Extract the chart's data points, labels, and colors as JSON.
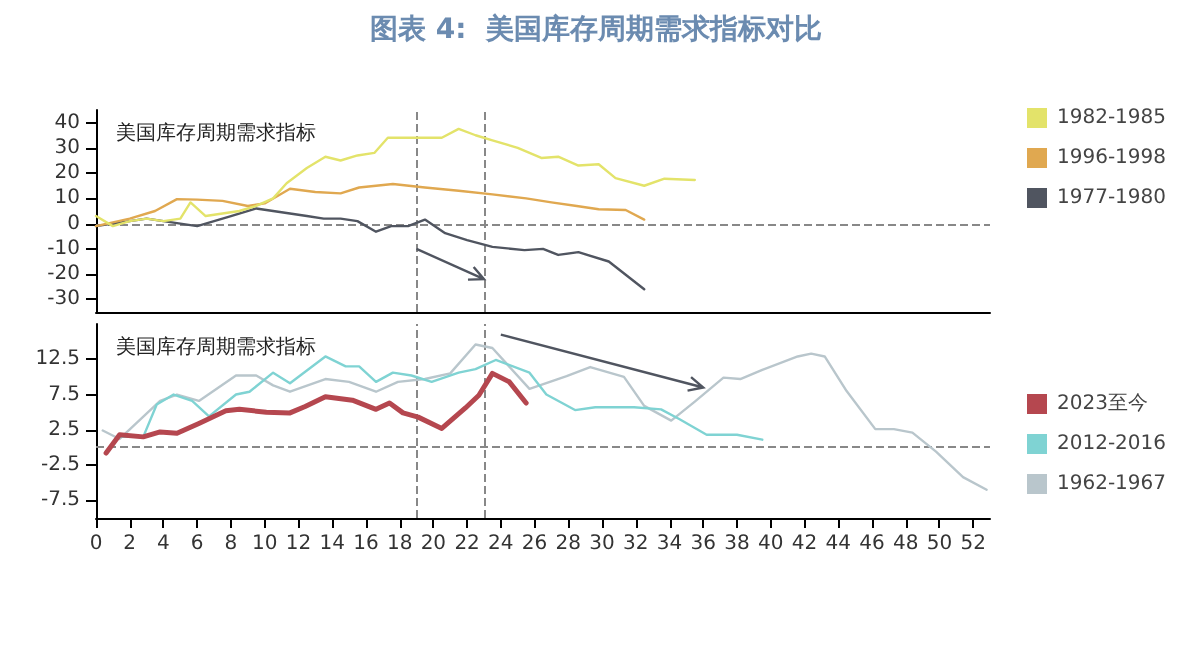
{
  "chart_data": [
    {
      "type": "line",
      "title": "图表 4:  美国库存周期需求指标对比",
      "subtitle": "美国库存周期需求指标",
      "xlim": [
        0,
        53
      ],
      "ylim": [
        -35,
        45
      ],
      "yticks": [
        -30,
        -20,
        -10,
        0,
        10,
        20,
        30,
        40
      ],
      "tick_labels": "y",
      "grid": false,
      "legend": "right",
      "marker": "none",
      "line_style": "solid",
      "ref_lines": [
        {
          "axis": "x",
          "value": 19,
          "color": "#888888",
          "line_style": "dashed"
        },
        {
          "axis": "x",
          "value": 23,
          "color": "#888888",
          "line_style": "dashed"
        },
        {
          "axis": "y",
          "value": 0,
          "color": "#888888",
          "line_style": "dashed"
        }
      ],
      "series": [
        {
          "name": "1982-1985",
          "color": "#e3e36a",
          "x": [
            0,
            1,
            2,
            3,
            4,
            5,
            5.6,
            6.5,
            7.5,
            8.5,
            9.5,
            10.5,
            11.3,
            12.5,
            13.6,
            14.5,
            15.5,
            16.5,
            17.3,
            18.5,
            19.5,
            20.5,
            21.5,
            22.5,
            23.5,
            25,
            26.4,
            27.4,
            28.6,
            29.8,
            30.8,
            32.5,
            33.7,
            35.5
          ],
          "values": [
            3,
            -1,
            1,
            2,
            1,
            2,
            8.4,
            3,
            4,
            5,
            7,
            10,
            16,
            22,
            26.5,
            25,
            27,
            28,
            34,
            34,
            34,
            34,
            37.5,
            35,
            33,
            30,
            26,
            26.5,
            23,
            23.5,
            18,
            15,
            17.8,
            17.3
          ]
        },
        {
          "name": "1996-1998",
          "color": "#e0a850",
          "x": [
            0,
            2,
            3.5,
            4.8,
            6,
            7.5,
            9,
            10,
            11.5,
            13,
            14.5,
            15.6,
            17.6,
            19.5,
            21.5,
            23.5,
            25.5,
            27,
            28.5,
            29.8,
            31.4,
            32.5
          ],
          "values": [
            -1,
            2,
            5,
            9.7,
            9.5,
            9,
            7,
            8,
            13.8,
            12.5,
            12,
            14.3,
            15.7,
            14.3,
            13,
            11.6,
            10,
            8.4,
            7,
            5.7,
            5.4,
            1.6
          ]
        },
        {
          "name": "1977-1980",
          "color": "#505560",
          "x": [
            0,
            1,
            2,
            3,
            4,
            5,
            6,
            7,
            8,
            9.5,
            10.5,
            11.5,
            12.5,
            13.5,
            14.5,
            15.5,
            16.6,
            17.5,
            18.5,
            19.5,
            20.7,
            22,
            23.5,
            25.4,
            26.5,
            27.4,
            28.6,
            30.4,
            32.5
          ],
          "values": [
            -1,
            0,
            1,
            2,
            1,
            0,
            -1,
            1,
            3,
            6,
            5,
            4,
            3,
            2,
            2,
            1,
            -3.2,
            -1,
            -1,
            1.6,
            -3.8,
            -6.5,
            -9.2,
            -10.5,
            -10,
            -12.4,
            -11.3,
            -15,
            -26
          ]
        }
      ]
    },
    {
      "type": "line",
      "title": "美国库存周期需求指标",
      "xlim": [
        0,
        53
      ],
      "xticks": [
        0,
        2,
        4,
        6,
        8,
        10,
        12,
        14,
        16,
        18,
        20,
        22,
        24,
        26,
        28,
        30,
        32,
        34,
        36,
        38,
        40,
        42,
        44,
        46,
        48,
        50,
        52
      ],
      "ylim": [
        -10,
        17.5
      ],
      "yticks": [
        -7.5,
        -2.5,
        2.5,
        7.5,
        12.5
      ],
      "grid": false,
      "legend": "right",
      "marker": "none",
      "line_style": "solid",
      "ref_lines": [
        {
          "axis": "x",
          "value": 19,
          "color": "#888888",
          "line_style": "dashed"
        },
        {
          "axis": "x",
          "value": 23,
          "color": "#888888",
          "line_style": "dashed"
        },
        {
          "axis": "y",
          "value": 0,
          "color": "#888888",
          "line_style": "dashed"
        }
      ],
      "series": [
        {
          "name": "2023至今",
          "color": "#b5474f",
          "x": [
            0.6,
            1.4,
            2.8,
            3.8,
            4.8,
            6.1,
            7.7,
            8.5,
            10.1,
            11.5,
            12.4,
            13.6,
            15.2,
            16.6,
            17.4,
            18.2,
            19.1,
            20.5,
            21.9,
            22.7,
            23.5,
            24.5,
            25.5
          ],
          "values": [
            -0.8,
            1.8,
            1.5,
            2.2,
            2,
            3.4,
            5.2,
            5.4,
            5,
            4.9,
            5.8,
            7.2,
            6.7,
            5.4,
            6.3,
            4.9,
            4.3,
            2.7,
            5.6,
            7.4,
            10.5,
            9.3,
            6.3
          ]
        },
        {
          "name": "2012-2016",
          "color": "#7fd3d3",
          "x": [
            1.4,
            2.8,
            3.6,
            4.6,
            5.7,
            6.7,
            8.3,
            9.1,
            10.5,
            11.5,
            13.6,
            14.8,
            15.6,
            16.6,
            17.6,
            18.7,
            19.9,
            21.5,
            22.5,
            23.7,
            25.7,
            26.7,
            28.4,
            29.6,
            31.9,
            33.5,
            34.6,
            36.2,
            38,
            39.5
          ],
          "values": [
            1.5,
            1.5,
            6.1,
            7.5,
            6.6,
            4.4,
            7.5,
            7.9,
            10.6,
            9.1,
            12.9,
            11.5,
            11.5,
            9.3,
            10.6,
            10.2,
            9.3,
            10.6,
            11.1,
            12.4,
            10.6,
            7.5,
            5.3,
            5.7,
            5.7,
            5.4,
            4,
            1.8,
            1.8,
            1.1
          ]
        },
        {
          "name": "1962-1967",
          "color": "#b9c6cc",
          "x": [
            0.4,
            1.4,
            3.8,
            4.8,
            6.1,
            8.3,
            9.5,
            10.5,
            11.5,
            13.6,
            15,
            16.6,
            17.9,
            19.5,
            21,
            22.5,
            23.5,
            25.7,
            27.9,
            29.3,
            31.3,
            32.5,
            34.1,
            35.5,
            37.2,
            38.2,
            39.5,
            41.6,
            42.4,
            43.2,
            44.5,
            46.2,
            47.3,
            48.4,
            49.8,
            51.4,
            52.8
          ],
          "values": [
            2.4,
            1.2,
            6.6,
            7.5,
            6.6,
            10.2,
            10.2,
            8.8,
            7.9,
            9.7,
            9.3,
            7.9,
            9.3,
            9.7,
            10.5,
            14.6,
            14.1,
            8.3,
            10.1,
            11.4,
            10,
            5.9,
            3.8,
            6.5,
            9.9,
            9.7,
            11,
            12.9,
            13.3,
            12.9,
            8,
            2.6,
            2.6,
            2.1,
            -0.6,
            -4.2,
            -6
          ]
        }
      ]
    }
  ]
}
